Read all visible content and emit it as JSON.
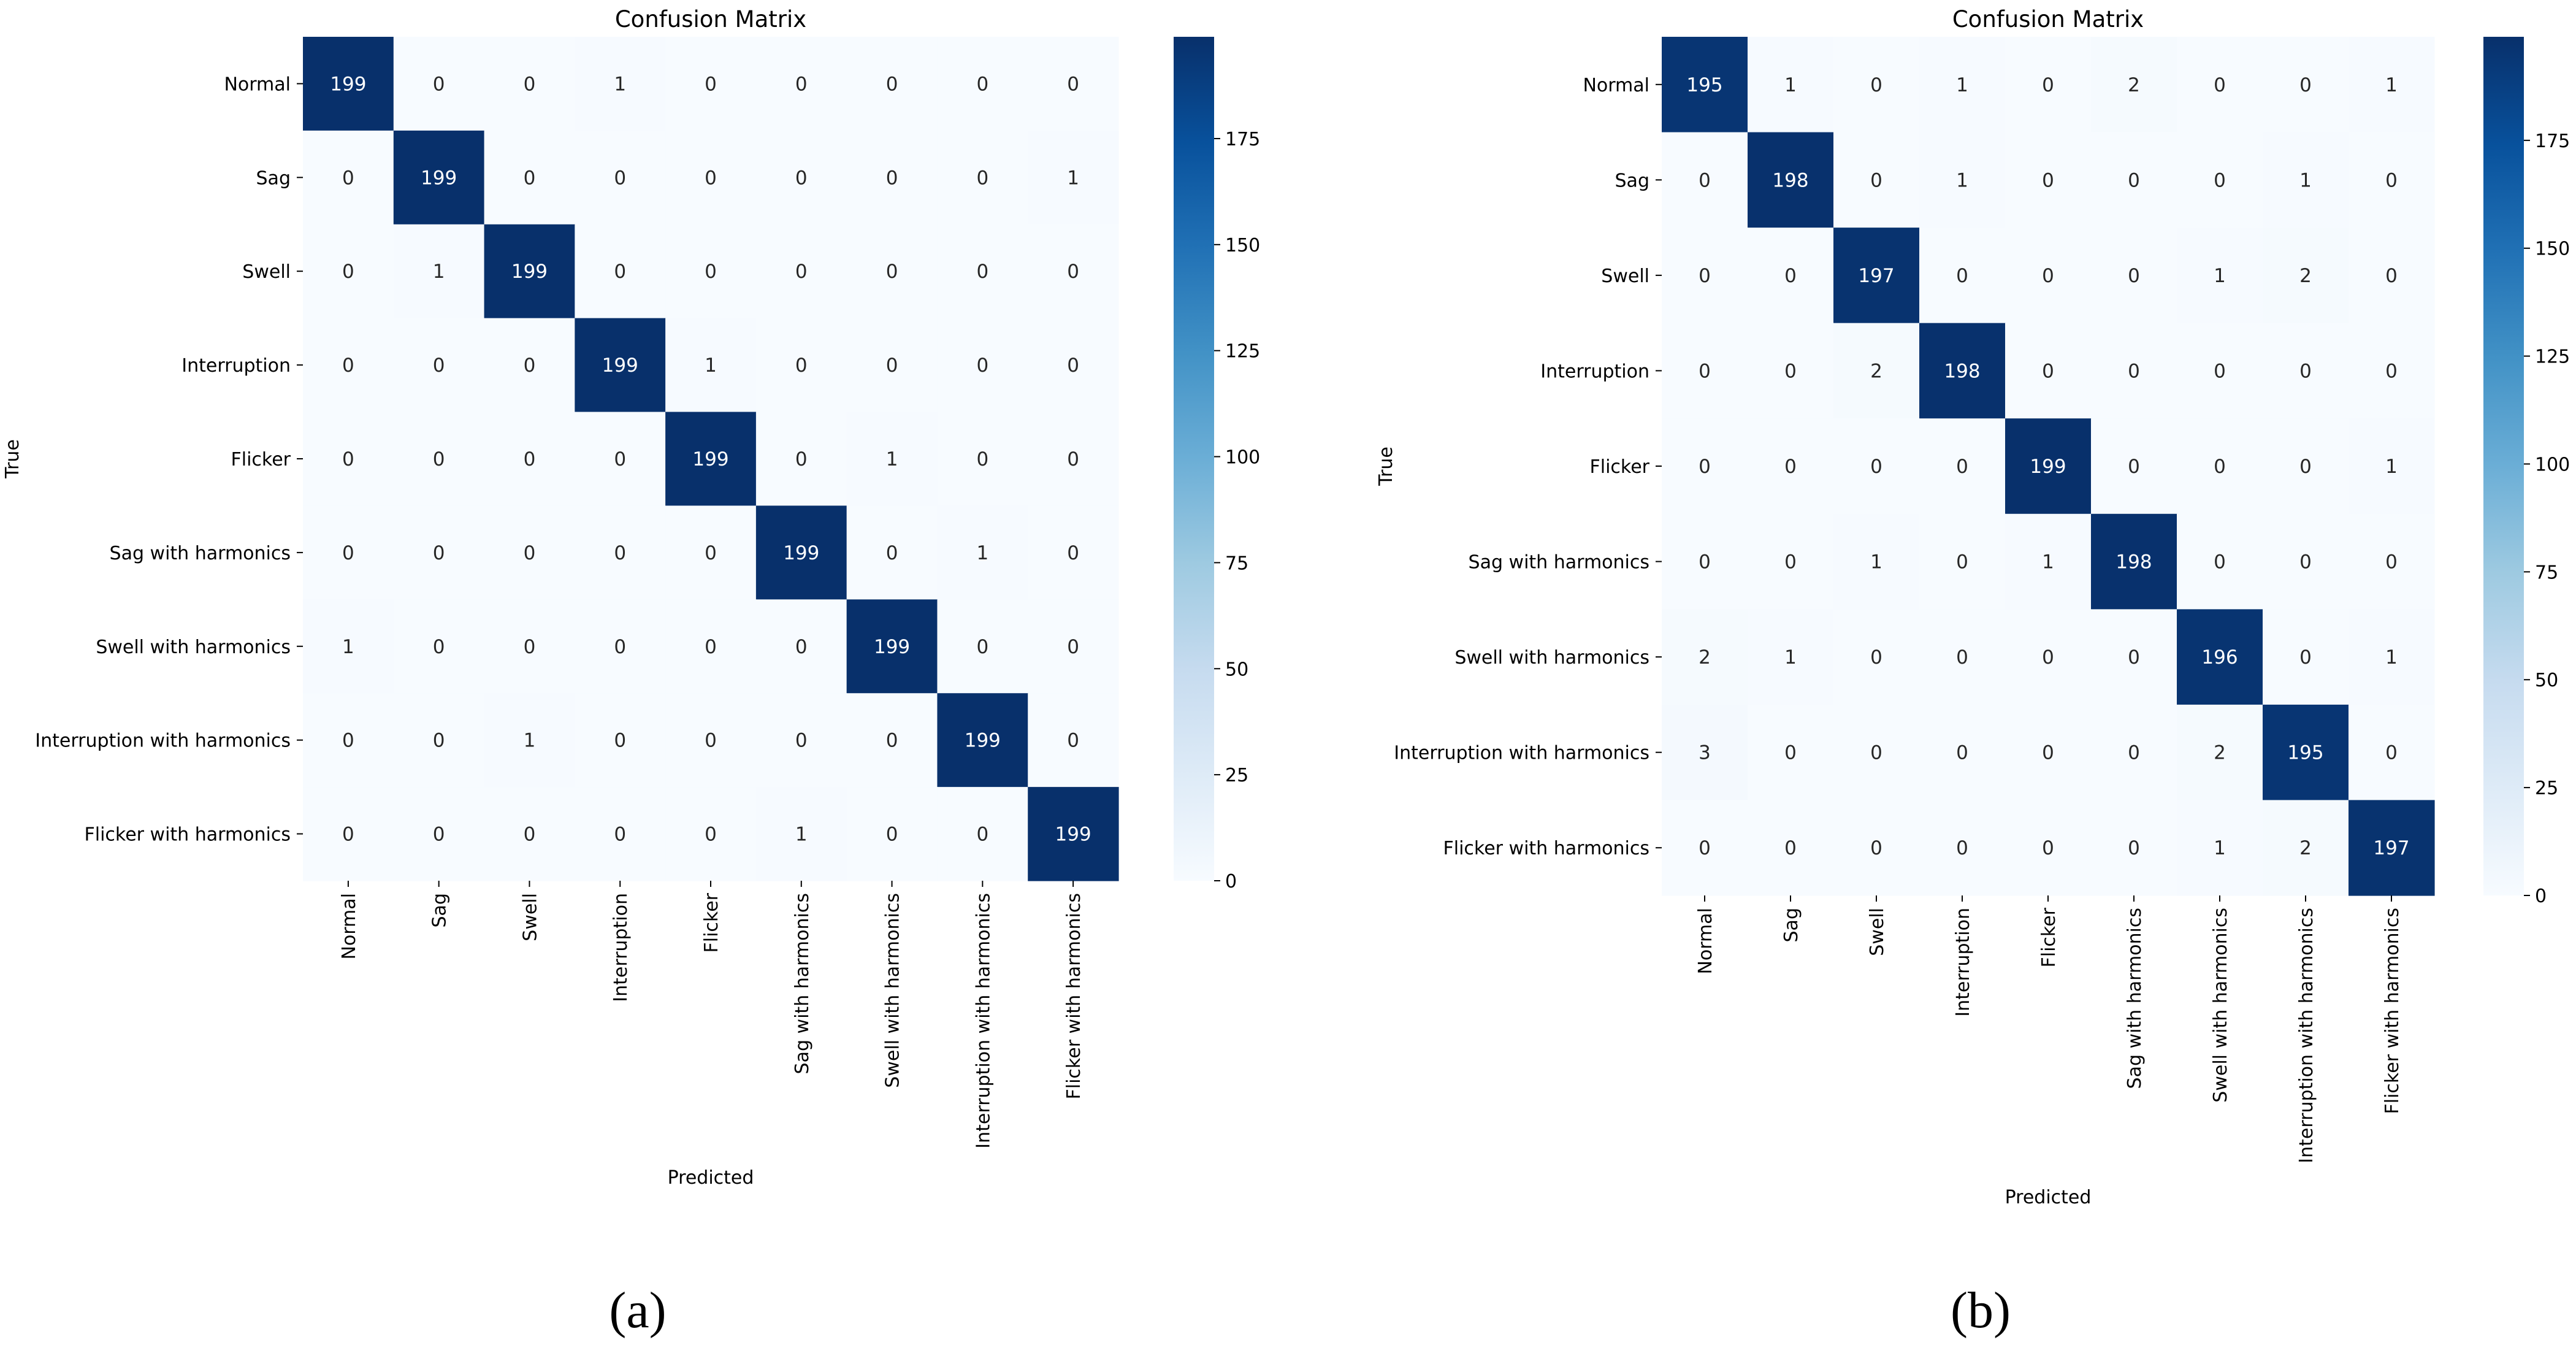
{
  "figure": {
    "panels": [
      {
        "caption_letter": "a",
        "caption_text": "(a)"
      },
      {
        "caption_letter": "b",
        "caption_text": "(b)"
      }
    ]
  },
  "chart_data": [
    {
      "type": "heatmap",
      "panel": "a",
      "title": "Confusion Matrix",
      "xlabel": "Predicted",
      "ylabel": "True",
      "labels": [
        "Normal",
        "Sag",
        "Swell",
        "Interruption",
        "Flicker",
        "Sag with harmonics",
        "Swell with harmonics",
        "Interruption with harmonics",
        "Flicker with harmonics"
      ],
      "matrix": [
        [
          199,
          0,
          0,
          1,
          0,
          0,
          0,
          0,
          0
        ],
        [
          0,
          199,
          0,
          0,
          0,
          0,
          0,
          0,
          1
        ],
        [
          0,
          1,
          199,
          0,
          0,
          0,
          0,
          0,
          0
        ],
        [
          0,
          0,
          0,
          199,
          1,
          0,
          0,
          0,
          0
        ],
        [
          0,
          0,
          0,
          0,
          199,
          0,
          1,
          0,
          0
        ],
        [
          0,
          0,
          0,
          0,
          0,
          199,
          0,
          1,
          0
        ],
        [
          1,
          0,
          0,
          0,
          0,
          0,
          199,
          0,
          0
        ],
        [
          0,
          0,
          1,
          0,
          0,
          0,
          0,
          199,
          0
        ],
        [
          0,
          0,
          0,
          0,
          0,
          1,
          0,
          0,
          199
        ]
      ],
      "colorbar": {
        "min": 0,
        "max": 199,
        "ticks": [
          0,
          25,
          50,
          75,
          100,
          125,
          150,
          175
        ]
      }
    },
    {
      "type": "heatmap",
      "panel": "b",
      "title": "Confusion Matrix",
      "xlabel": "Predicted",
      "ylabel": "True",
      "labels": [
        "Normal",
        "Sag",
        "Swell",
        "Interruption",
        "Flicker",
        "Sag with harmonics",
        "Swell with harmonics",
        "Interruption with harmonics",
        "Flicker with harmonics"
      ],
      "matrix": [
        [
          195,
          1,
          0,
          1,
          0,
          2,
          0,
          0,
          1
        ],
        [
          0,
          198,
          0,
          1,
          0,
          0,
          0,
          1,
          0
        ],
        [
          0,
          0,
          197,
          0,
          0,
          0,
          1,
          2,
          0
        ],
        [
          0,
          0,
          2,
          198,
          0,
          0,
          0,
          0,
          0
        ],
        [
          0,
          0,
          0,
          0,
          199,
          0,
          0,
          0,
          1
        ],
        [
          0,
          0,
          1,
          0,
          1,
          198,
          0,
          0,
          0
        ],
        [
          2,
          1,
          0,
          0,
          0,
          0,
          196,
          0,
          1
        ],
        [
          3,
          0,
          0,
          0,
          0,
          0,
          2,
          195,
          0
        ],
        [
          0,
          0,
          0,
          0,
          0,
          0,
          1,
          2,
          197
        ]
      ],
      "colorbar": {
        "min": 0,
        "max": 199,
        "ticks": [
          0,
          25,
          50,
          75,
          100,
          125,
          150,
          175
        ]
      }
    }
  ]
}
